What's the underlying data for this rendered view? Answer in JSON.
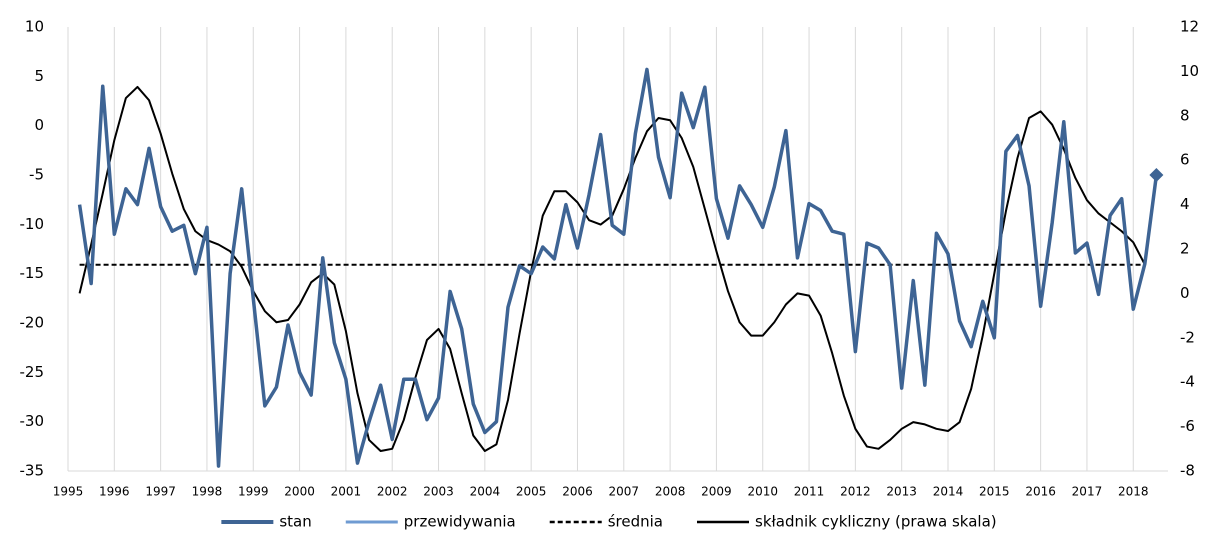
{
  "chart_data": {
    "type": "line",
    "x": [
      1995.25,
      1995.5,
      1995.75,
      1996,
      1996.25,
      1996.5,
      1996.75,
      1997,
      1997.25,
      1997.5,
      1997.75,
      1998,
      1998.25,
      1998.5,
      1998.75,
      1999,
      1999.25,
      1999.5,
      1999.75,
      2000,
      2000.25,
      2000.5,
      2000.75,
      2001,
      2001.25,
      2001.5,
      2001.75,
      2002,
      2002.25,
      2002.5,
      2002.75,
      2003,
      2003.25,
      2003.5,
      2003.75,
      2004,
      2004.25,
      2004.5,
      2004.75,
      2005,
      2005.25,
      2005.5,
      2005.75,
      2006,
      2006.25,
      2006.5,
      2006.75,
      2007,
      2007.25,
      2007.5,
      2007.75,
      2008,
      2008.25,
      2008.5,
      2008.75,
      2009,
      2009.25,
      2009.5,
      2009.75,
      2010,
      2010.25,
      2010.5,
      2010.75,
      2011,
      2011.25,
      2011.5,
      2011.75,
      2012,
      2012.25,
      2012.5,
      2012.75,
      2013,
      2013.25,
      2013.5,
      2013.75,
      2014,
      2014.25,
      2014.5,
      2014.75,
      2015,
      2015.25,
      2015.5,
      2015.75,
      2016,
      2016.25,
      2016.5,
      2016.75,
      2017,
      2017.25,
      2017.5,
      2017.75,
      2018,
      2018.25,
      2018.5
    ],
    "xlim": [
      1995,
      2018.75
    ],
    "xticks": [
      1995,
      1996,
      1997,
      1998,
      1999,
      2000,
      2001,
      2002,
      2003,
      2004,
      2005,
      2006,
      2007,
      2008,
      2009,
      2010,
      2011,
      2012,
      2013,
      2014,
      2015,
      2016,
      2017,
      2018
    ],
    "xgrid": true,
    "ylim": [
      -35,
      10
    ],
    "yticks": [
      -35,
      -30,
      -25,
      -20,
      -15,
      -10,
      -5,
      0,
      5,
      10
    ],
    "y2lim": [
      -8,
      12
    ],
    "y2ticks": [
      -8,
      -6,
      -4,
      -2,
      0,
      2,
      4,
      6,
      8,
      10,
      12
    ],
    "legend": "bottom",
    "series": [
      {
        "name": "stan",
        "color": "#3e6494",
        "width": 3.5,
        "values": [
          -8,
          -16,
          4,
          -11,
          -6.4,
          -8,
          -2.3,
          -8.2,
          -10.7,
          -10.1,
          -15,
          -10.3,
          -34.5,
          -15,
          -6.4,
          -17.5,
          -28.4,
          -26.5,
          -20.2,
          -25,
          -27.3,
          -13.4,
          -22,
          -25.7,
          -34.2,
          -30,
          -26.3,
          -31.8,
          -25.7,
          -25.7,
          -29.8,
          -27.6,
          -16.8,
          -20.6,
          -28.2,
          -31.1,
          -30,
          -18.4,
          -14.2,
          -15,
          -12.3,
          -13.5,
          -8,
          -12.4,
          -7,
          -0.9,
          -10.1,
          -11,
          -0.8,
          5.7,
          -3.2,
          -7.3,
          3.3,
          -0.2,
          3.9,
          -7.4,
          -11.4,
          -6.1,
          -8,
          -10.3,
          -6.2,
          -0.5,
          -13.4,
          -7.9,
          -8.6,
          -10.7,
          -11,
          -22.9,
          -11.9,
          -12.4,
          -14.1,
          -26.6,
          -15.7,
          -26.3,
          -10.9,
          -13,
          -19.8,
          -22.4,
          -17.8,
          -21.5,
          -2.6,
          -1,
          -6.1,
          -18.3,
          -9.8,
          0.4,
          -12.9,
          -11.9,
          -17.1,
          -9.1,
          -7.4,
          -18.6,
          -14,
          -5
        ]
      },
      {
        "name": "przewidywania",
        "color": "#6f9bd2",
        "width": 2.5,
        "marker": "diamond",
        "values": [
          null,
          null,
          null,
          null,
          null,
          null,
          null,
          null,
          null,
          null,
          null,
          null,
          null,
          null,
          null,
          null,
          null,
          null,
          null,
          null,
          null,
          null,
          null,
          null,
          null,
          null,
          null,
          null,
          null,
          null,
          null,
          null,
          null,
          null,
          null,
          null,
          null,
          null,
          null,
          null,
          null,
          null,
          null,
          null,
          null,
          null,
          null,
          null,
          null,
          null,
          null,
          null,
          null,
          null,
          null,
          null,
          null,
          null,
          null,
          null,
          null,
          null,
          null,
          null,
          null,
          null,
          null,
          null,
          null,
          null,
          null,
          null,
          null,
          null,
          null,
          null,
          null,
          null,
          null,
          null,
          null,
          null,
          null,
          null,
          null,
          null,
          null,
          null,
          null,
          null,
          null,
          null,
          null,
          -5
        ]
      },
      {
        "name": "średnia",
        "color": "#000000",
        "width": 2,
        "dash": true,
        "values": [
          -14.1,
          -14.1,
          -14.1,
          -14.1,
          -14.1,
          -14.1,
          -14.1,
          -14.1,
          -14.1,
          -14.1,
          -14.1,
          -14.1,
          -14.1,
          -14.1,
          -14.1,
          -14.1,
          -14.1,
          -14.1,
          -14.1,
          -14.1,
          -14.1,
          -14.1,
          -14.1,
          -14.1,
          -14.1,
          -14.1,
          -14.1,
          -14.1,
          -14.1,
          -14.1,
          -14.1,
          -14.1,
          -14.1,
          -14.1,
          -14.1,
          -14.1,
          -14.1,
          -14.1,
          -14.1,
          -14.1,
          -14.1,
          -14.1,
          -14.1,
          -14.1,
          -14.1,
          -14.1,
          -14.1,
          -14.1,
          -14.1,
          -14.1,
          -14.1,
          -14.1,
          -14.1,
          -14.1,
          -14.1,
          -14.1,
          -14.1,
          -14.1,
          -14.1,
          -14.1,
          -14.1,
          -14.1,
          -14.1,
          -14.1,
          -14.1,
          -14.1,
          -14.1,
          -14.1,
          -14.1,
          -14.1,
          -14.1,
          -14.1,
          -14.1,
          -14.1,
          -14.1,
          -14.1,
          -14.1,
          -14.1,
          -14.1,
          -14.1,
          -14.1,
          -14.1,
          -14.1,
          -14.1,
          -14.1,
          -14.1,
          -14.1,
          -14.1,
          -14.1,
          -14.1,
          -14.1,
          -14.1,
          -14.1,
          null
        ]
      },
      {
        "name": "składnik cykliczny (prawa skala)",
        "color": "#000000",
        "width": 2,
        "axis": "y2",
        "values": [
          0,
          2.2,
          4.5,
          6.9,
          8.8,
          9.3,
          8.7,
          7.2,
          5.4,
          3.8,
          2.8,
          2.4,
          2.2,
          1.9,
          1.2,
          0.1,
          -0.8,
          -1.3,
          -1.2,
          -0.5,
          0.5,
          0.9,
          0.4,
          -1.7,
          -4.5,
          -6.6,
          -7.1,
          -7,
          -5.7,
          -3.8,
          -2.1,
          -1.6,
          -2.5,
          -4.5,
          -6.4,
          -7.1,
          -6.8,
          -4.8,
          -1.8,
          1,
          3.5,
          4.6,
          4.6,
          4.1,
          3.3,
          3.1,
          3.5,
          4.7,
          6.1,
          7.3,
          7.9,
          7.8,
          7,
          5.7,
          3.8,
          1.9,
          0.1,
          -1.3,
          -1.9,
          -1.9,
          -1.3,
          -0.5,
          0,
          -0.1,
          -1,
          -2.7,
          -4.6,
          -6.1,
          -6.9,
          -7,
          -6.6,
          -6.1,
          -5.8,
          -5.9,
          -6.1,
          -6.2,
          -5.8,
          -4.3,
          -1.9,
          0.9,
          3.7,
          6.1,
          7.9,
          8.2,
          7.6,
          6.5,
          5.2,
          4.2,
          3.6,
          3.2,
          2.8,
          2.3,
          1.3,
          null
        ]
      }
    ]
  }
}
